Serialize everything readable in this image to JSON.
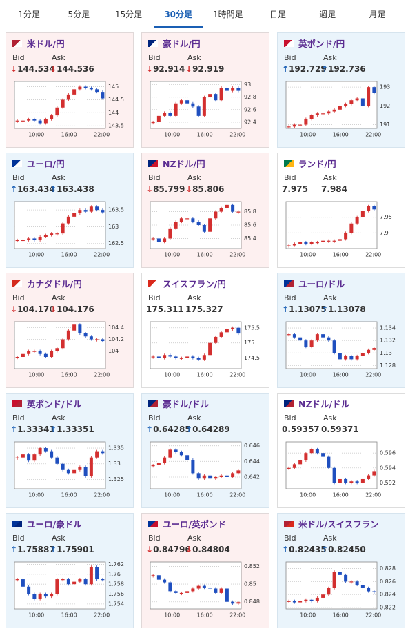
{
  "tabs": {
    "items": [
      "1分足",
      "5分足",
      "15分足",
      "30分足",
      "1時間足",
      "日足",
      "週足",
      "月足"
    ],
    "active": 3
  },
  "labels": {
    "bid": "Bid",
    "ask": "Ask"
  },
  "panels": [
    {
      "title": "米ドル/円",
      "flag": [
        "#b22234",
        "#ffffff"
      ],
      "bid_arrow": "↓",
      "bid": "144.534",
      "ask_arrow": "↓",
      "ask": "144.536",
      "chart": {
        "type": "candlestick",
        "values": [
          143.7,
          143.7,
          143.75,
          143.7,
          143.6,
          143.75,
          143.9,
          144.2,
          144.5,
          144.7,
          144.9,
          145.0,
          144.95,
          144.9,
          144.8,
          144.55
        ],
        "ylim": [
          143.4,
          145.2
        ],
        "yticks": [
          143.5,
          144,
          144.5,
          145
        ],
        "xticks": [
          "10:00",
          "16:00",
          "22:00"
        ]
      }
    },
    {
      "title": "豪ドル/円",
      "flag": [
        "#00247d",
        "#ffffff"
      ],
      "bid_arrow": "↓",
      "bid": "92.914",
      "ask_arrow": "↓",
      "ask": "92.919",
      "chart": {
        "type": "candlestick",
        "values": [
          92.4,
          92.5,
          92.55,
          92.5,
          92.7,
          92.75,
          92.7,
          92.65,
          92.5,
          92.8,
          92.85,
          92.75,
          92.95,
          92.9,
          92.95,
          92.9
        ],
        "ylim": [
          92.3,
          93.05
        ],
        "yticks": [
          92.4,
          92.6,
          92.8,
          93
        ],
        "xticks": [
          "10:00",
          "16:00",
          "22:00"
        ]
      }
    },
    {
      "title": "英ポンド/円",
      "flag": [
        "#c8102e",
        "#ffffff"
      ],
      "bid_arrow": "↑",
      "bid": "192.729",
      "ask_arrow": "↑",
      "ask": "192.736",
      "chart": {
        "type": "candlestick",
        "values": [
          190.9,
          191.0,
          191.0,
          191.3,
          191.5,
          191.6,
          191.6,
          191.7,
          191.8,
          192.0,
          192.1,
          192.3,
          192.4,
          192.0,
          193.0,
          192.7
        ],
        "ylim": [
          190.8,
          193.3
        ],
        "yticks": [
          191,
          192,
          193
        ],
        "xticks": [
          "10:00",
          "16:00",
          "22:00"
        ]
      }
    },
    {
      "title": "ユーロ/円",
      "flag": [
        "#003399",
        "#ffffff"
      ],
      "bid_arrow": "↑",
      "bid": "163.434",
      "ask_arrow": "↑",
      "ask": "163.438",
      "chart": {
        "type": "candlestick",
        "values": [
          162.6,
          162.6,
          162.65,
          162.6,
          162.7,
          162.75,
          162.8,
          162.8,
          163.1,
          163.3,
          163.4,
          163.5,
          163.45,
          163.6,
          163.5,
          163.43
        ],
        "ylim": [
          162.35,
          163.75
        ],
        "yticks": [
          162.5,
          163,
          163.5
        ],
        "xticks": [
          "10:00",
          "16:00",
          "22:00"
        ]
      }
    },
    {
      "title": "NZドル/円",
      "flag": [
        "#00247d",
        "#cc142b"
      ],
      "bid_arrow": "↓",
      "bid": "85.799",
      "ask_arrow": "↓",
      "ask": "85.806",
      "chart": {
        "type": "candlestick",
        "values": [
          85.4,
          85.35,
          85.4,
          85.55,
          85.65,
          85.7,
          85.7,
          85.65,
          85.6,
          85.5,
          85.7,
          85.8,
          85.85,
          85.9,
          85.8,
          85.8
        ],
        "ylim": [
          85.25,
          85.95
        ],
        "yticks": [
          85.4,
          85.6,
          85.8
        ],
        "xticks": [
          "10:00",
          "16:00",
          "22:00"
        ]
      }
    },
    {
      "title": "ランド/円",
      "flag": [
        "#007a4d",
        "#ffb612"
      ],
      "bid": "7.975",
      "ask": "7.984",
      "chart": {
        "type": "candlestick",
        "values": [
          7.86,
          7.865,
          7.87,
          7.865,
          7.87,
          7.87,
          7.875,
          7.875,
          7.875,
          7.88,
          7.9,
          7.93,
          7.95,
          7.97,
          7.985,
          7.975
        ],
        "ylim": [
          7.85,
          8.0
        ],
        "yticks": [
          7.9,
          7.95
        ],
        "xticks": [
          "10:00",
          "16:00",
          "22:00"
        ]
      }
    },
    {
      "title": "カナダドル/円",
      "flag": [
        "#d52b1e",
        "#ffffff"
      ],
      "bid_arrow": "↓",
      "bid": "104.170",
      "ask_arrow": "↓",
      "ask": "104.176",
      "chart": {
        "type": "candlestick",
        "values": [
          103.9,
          103.95,
          104.0,
          104.0,
          103.95,
          103.9,
          104.0,
          104.05,
          104.2,
          104.35,
          104.45,
          104.3,
          104.25,
          104.2,
          104.2,
          104.17
        ],
        "ylim": [
          103.7,
          104.5
        ],
        "yticks": [
          104,
          104.2,
          104.4
        ],
        "xticks": [
          "10:00",
          "16:00",
          "22:00"
        ]
      }
    },
    {
      "title": "スイスフラン/円",
      "flag": [
        "#da291c",
        "#ffffff"
      ],
      "bid": "175.311",
      "ask": "175.327",
      "chart": {
        "type": "candlestick",
        "values": [
          174.55,
          174.5,
          174.6,
          174.55,
          174.5,
          174.5,
          174.55,
          174.5,
          174.45,
          174.6,
          175.0,
          175.2,
          175.35,
          175.45,
          175.5,
          175.31
        ],
        "ylim": [
          174.15,
          175.7
        ],
        "yticks": [
          174.5,
          175,
          175.5
        ],
        "xticks": [
          "10:00",
          "16:00",
          "22:00"
        ]
      }
    },
    {
      "title": "ユーロ/ドル",
      "flag": [
        "#003399",
        "#b22234"
      ],
      "bid_arrow": "↑",
      "bid": "1.13075",
      "ask_arrow": "↑",
      "ask": "1.13078",
      "chart": {
        "type": "candlestick",
        "values": [
          1.133,
          1.1325,
          1.132,
          1.131,
          1.132,
          1.133,
          1.1325,
          1.132,
          1.13,
          1.129,
          1.1295,
          1.129,
          1.1295,
          1.13,
          1.1305,
          1.1308
        ],
        "ylim": [
          1.1275,
          1.135
        ],
        "yticks": [
          1.128,
          1.13,
          1.132,
          1.134
        ],
        "xticks": [
          "10:00",
          "16:00",
          "22:00"
        ]
      }
    },
    {
      "title": "英ポンド/ドル",
      "flag": [
        "#c8102e",
        "#b22234"
      ],
      "bid_arrow": "↑",
      "bid": "1.33341",
      "ask_arrow": "↑",
      "ask": "1.33351",
      "chart": {
        "type": "candlestick",
        "values": [
          1.332,
          1.333,
          1.331,
          1.333,
          1.335,
          1.334,
          1.332,
          1.33,
          1.328,
          1.327,
          1.328,
          1.329,
          1.326,
          1.332,
          1.334,
          1.3334
        ],
        "ylim": [
          1.322,
          1.337
        ],
        "yticks": [
          1.325,
          1.33,
          1.335
        ],
        "xticks": [
          "10:00",
          "16:00",
          "22:00"
        ]
      }
    },
    {
      "title": "豪ドル/ドル",
      "flag": [
        "#00247d",
        "#b22234"
      ],
      "bid_arrow": "↑",
      "bid": "0.64285",
      "ask_arrow": "↑",
      "ask": "0.64289",
      "chart": {
        "type": "candlestick",
        "values": [
          0.6435,
          0.6438,
          0.6445,
          0.6455,
          0.6452,
          0.6448,
          0.6442,
          0.6425,
          0.6418,
          0.6422,
          0.6418,
          0.642,
          0.6422,
          0.642,
          0.6425,
          0.64285
        ],
        "ylim": [
          0.6405,
          0.6465
        ],
        "yticks": [
          0.642,
          0.644,
          0.646
        ],
        "xticks": [
          "10:00",
          "16:00",
          "22:00"
        ]
      }
    },
    {
      "title": "NZドル/ドル",
      "flag": [
        "#00247d",
        "#b22234"
      ],
      "bid": "0.59357",
      "ask": "0.59371",
      "chart": {
        "type": "candlestick",
        "values": [
          0.594,
          0.5945,
          0.595,
          0.596,
          0.5965,
          0.596,
          0.5955,
          0.594,
          0.592,
          0.5925,
          0.592,
          0.5922,
          0.592,
          0.5925,
          0.593,
          0.59357
        ],
        "ylim": [
          0.5912,
          0.5975
        ],
        "yticks": [
          0.592,
          0.594,
          0.596
        ],
        "xticks": [
          "10:00",
          "16:00",
          "22:00"
        ]
      }
    },
    {
      "title": "ユーロ/豪ドル",
      "flag": [
        "#003399",
        "#00247d"
      ],
      "bid_arrow": "↑",
      "bid": "1.75887",
      "ask_arrow": "↑",
      "ask": "1.75901",
      "chart": {
        "type": "candlestick",
        "values": [
          1.759,
          1.7575,
          1.756,
          1.755,
          1.756,
          1.7555,
          1.756,
          1.759,
          1.759,
          1.758,
          1.7585,
          1.759,
          1.758,
          1.7615,
          1.759,
          1.7589
        ],
        "ylim": [
          1.753,
          1.7625
        ],
        "yticks": [
          1.754,
          1.756,
          1.758,
          1.76,
          1.762
        ],
        "xticks": [
          "10:00",
          "16:00",
          "22:00"
        ]
      }
    },
    {
      "title": "ユーロ/英ポンド",
      "flag": [
        "#003399",
        "#c8102e"
      ],
      "bid_arrow": "↓",
      "bid": "0.84796",
      "ask_arrow": "↓",
      "ask": "0.84804",
      "chart": {
        "type": "candlestick",
        "values": [
          0.851,
          0.8505,
          0.8502,
          0.8492,
          0.849,
          0.849,
          0.8492,
          0.8495,
          0.8498,
          0.8496,
          0.8495,
          0.849,
          0.8495,
          0.848,
          0.8478,
          0.84796
        ],
        "ylim": [
          0.8472,
          0.8525
        ],
        "yticks": [
          0.848,
          0.85,
          0.852
        ],
        "xticks": [
          "10:00",
          "16:00",
          "22:00"
        ]
      }
    },
    {
      "title": "米ドル/スイスフラン",
      "flag": [
        "#b22234",
        "#da291c"
      ],
      "bid_arrow": "↑",
      "bid": "0.82435",
      "ask_arrow": "↑",
      "ask": "0.82450",
      "chart": {
        "type": "candlestick",
        "values": [
          0.823,
          0.8228,
          0.823,
          0.8232,
          0.823,
          0.8235,
          0.824,
          0.825,
          0.8275,
          0.827,
          0.826,
          0.826,
          0.8255,
          0.825,
          0.8245,
          0.82435
        ],
        "ylim": [
          0.8218,
          0.829
        ],
        "yticks": [
          0.822,
          0.824,
          0.826,
          0.828
        ],
        "xticks": [
          "10:00",
          "16:00",
          "22:00"
        ]
      }
    }
  ]
}
